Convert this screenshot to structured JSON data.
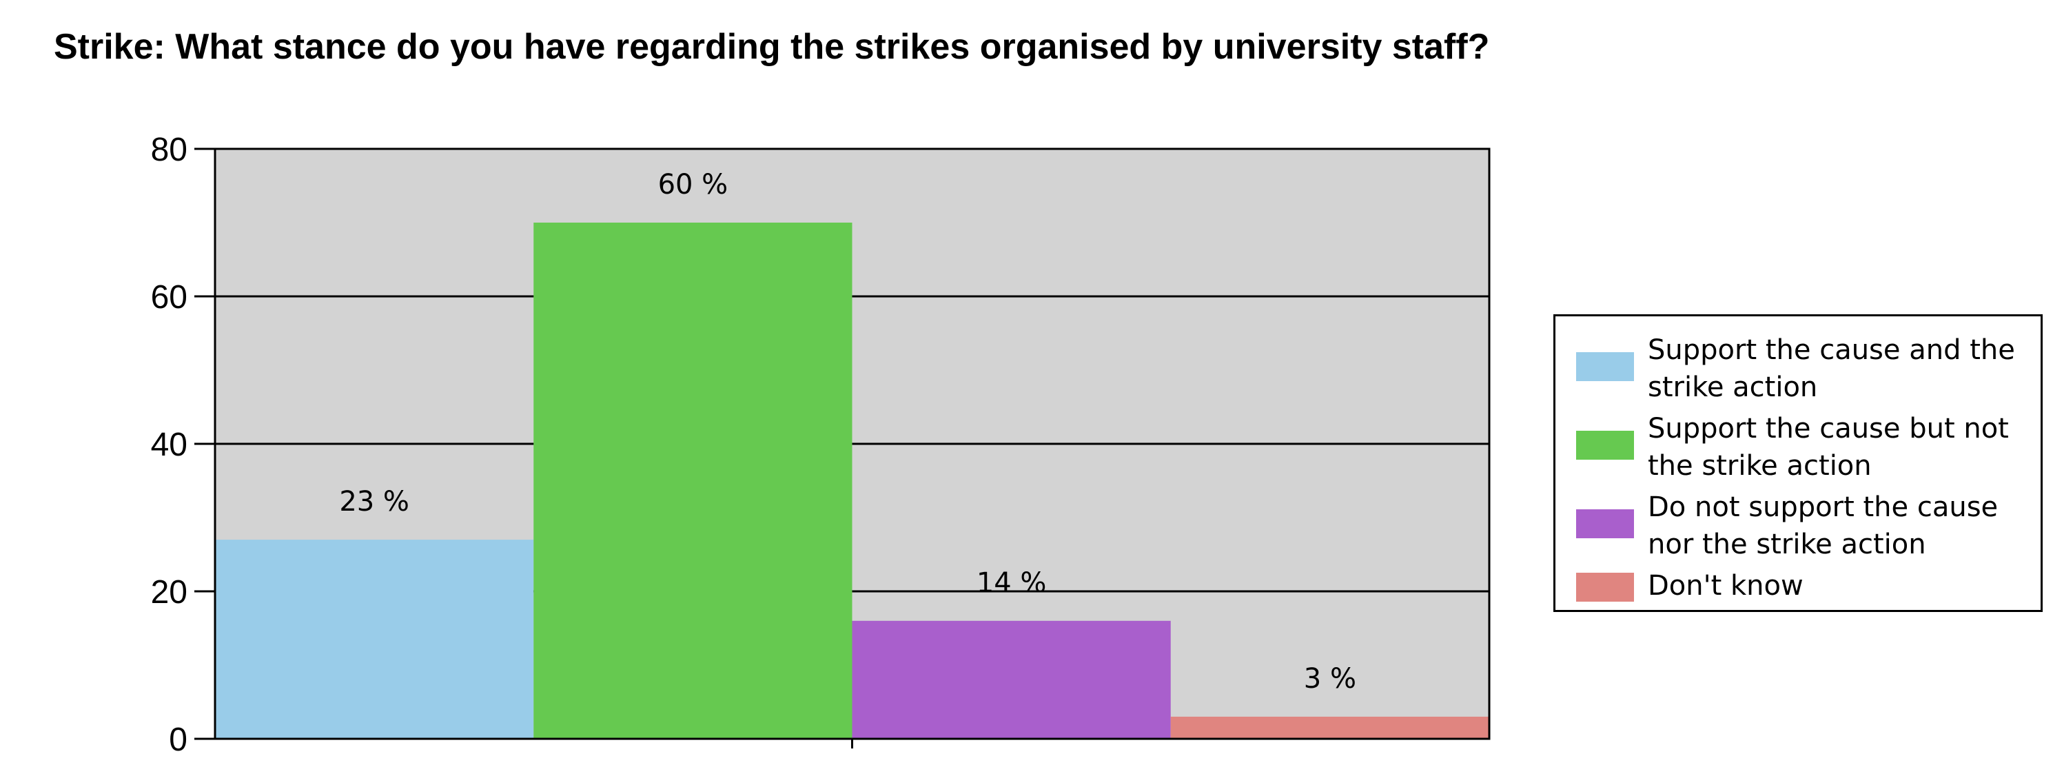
{
  "title": "Strike:  What stance do you have regarding the strikes organised by university staff?",
  "chart_data": {
    "type": "bar",
    "title": "Strike:  What stance do you have regarding the strikes organised by university staff?",
    "categories": [
      "Support the cause and the strike action",
      "Support the cause but not the strike action",
      "Do not support the cause nor the strike action",
      "Don't know"
    ],
    "values": [
      27,
      70,
      16,
      3
    ],
    "data_labels": [
      "23 %",
      "60 %",
      "14 %",
      "3 %"
    ],
    "colors": [
      "#99cce9",
      "#66c950",
      "#a95fcc",
      "#e08580"
    ],
    "ylim": [
      0,
      80
    ],
    "yticks": [
      0,
      20,
      40,
      60,
      80
    ],
    "ytick_labels": [
      "0",
      "20",
      "40",
      "60",
      "80"
    ],
    "grid": true,
    "plot_background": "#d3d3d3",
    "legend_position": "right"
  }
}
